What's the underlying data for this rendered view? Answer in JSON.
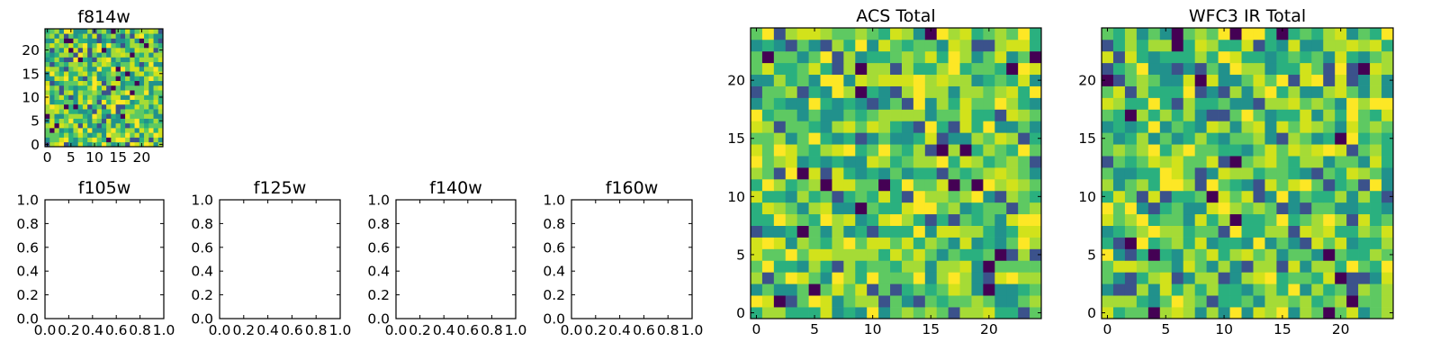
{
  "figure": {
    "panels": [
      {
        "id": "f814w",
        "title": "f814w",
        "kind": "image",
        "grid": 25,
        "xticks": [
          0,
          5,
          10,
          15,
          20
        ],
        "yticks": [
          0,
          5,
          10,
          15,
          20
        ]
      },
      {
        "id": "f105w",
        "title": "f105w",
        "kind": "empty",
        "xticks": [
          "0.0",
          "0.2",
          "0.4",
          "0.6",
          "0.8",
          "1.0"
        ],
        "yticks": [
          "0.0",
          "0.2",
          "0.4",
          "0.6",
          "0.8",
          "1.0"
        ]
      },
      {
        "id": "f125w",
        "title": "f125w",
        "kind": "empty",
        "xticks": [
          "0.0",
          "0.2",
          "0.4",
          "0.6",
          "0.8",
          "1.0"
        ],
        "yticks": [
          "0.0",
          "0.2",
          "0.4",
          "0.6",
          "0.8",
          "1.0"
        ]
      },
      {
        "id": "f140w",
        "title": "f140w",
        "kind": "empty",
        "xticks": [
          "0.0",
          "0.2",
          "0.4",
          "0.6",
          "0.8",
          "1.0"
        ],
        "yticks": [
          "0.0",
          "0.2",
          "0.4",
          "0.6",
          "0.8",
          "1.0"
        ]
      },
      {
        "id": "f160w",
        "title": "f160w",
        "kind": "empty",
        "xticks": [
          "0.0",
          "0.2",
          "0.4",
          "0.6",
          "0.8",
          "1.0"
        ],
        "yticks": [
          "0.0",
          "0.2",
          "0.4",
          "0.6",
          "0.8",
          "1.0"
        ]
      },
      {
        "id": "acs-total",
        "title": "ACS Total",
        "kind": "image",
        "grid": 25,
        "xticks": [
          0,
          5,
          10,
          15,
          20
        ],
        "yticks": [
          0,
          5,
          10,
          15,
          20
        ]
      },
      {
        "id": "wfc3-ir-total",
        "title": "WFC3 IR Total",
        "kind": "image",
        "grid": 25,
        "xticks": [
          0,
          5,
          10,
          15,
          20
        ],
        "yticks": [
          0,
          5,
          10,
          15,
          20
        ]
      }
    ],
    "colormap": [
      "#440154",
      "#3b528b",
      "#21918c",
      "#2ab07f",
      "#5ec962",
      "#a5db36",
      "#d2e21b",
      "#fde725"
    ]
  },
  "chart_data": [
    {
      "type": "heatmap",
      "title": "f814w",
      "x_range": [
        -0.5,
        24.5
      ],
      "y_range": [
        -0.5,
        24.5
      ],
      "xlabel": "",
      "ylabel": "",
      "grid": false
    },
    {
      "type": "scatter",
      "title": "f105w",
      "series": [],
      "xlim": [
        0,
        1
      ],
      "ylim": [
        0,
        1
      ],
      "xlabel": "",
      "ylabel": ""
    },
    {
      "type": "scatter",
      "title": "f125w",
      "series": [],
      "xlim": [
        0,
        1
      ],
      "ylim": [
        0,
        1
      ],
      "xlabel": "",
      "ylabel": ""
    },
    {
      "type": "scatter",
      "title": "f140w",
      "series": [],
      "xlim": [
        0,
        1
      ],
      "ylim": [
        0,
        1
      ],
      "xlabel": "",
      "ylabel": ""
    },
    {
      "type": "scatter",
      "title": "f160w",
      "series": [],
      "xlim": [
        0,
        1
      ],
      "ylim": [
        0,
        1
      ],
      "xlabel": "",
      "ylabel": ""
    },
    {
      "type": "heatmap",
      "title": "ACS Total",
      "x_range": [
        -0.5,
        24.5
      ],
      "y_range": [
        -0.5,
        24.5
      ],
      "xlabel": "",
      "ylabel": "",
      "grid": false
    },
    {
      "type": "heatmap",
      "title": "WFC3 IR Total",
      "x_range": [
        -0.5,
        24.5
      ],
      "y_range": [
        -0.5,
        24.5
      ],
      "xlabel": "",
      "ylabel": "",
      "grid": false
    }
  ]
}
